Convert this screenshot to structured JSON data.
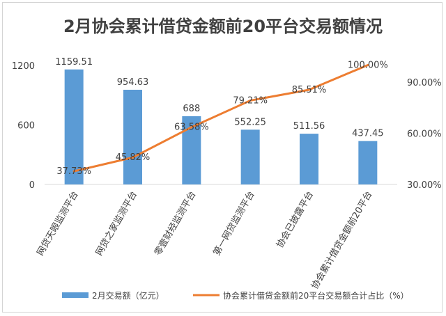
{
  "chart_data": {
    "type": "bar",
    "title": "2月协会累计借贷金额前20平台交易额情况",
    "categories": [
      "网贷天眼监测平台",
      "网贷之家监测平台",
      "零壹财经监测平台",
      "第一网贷监测平台",
      "协会已披露平台",
      "协会累计借贷金额前20平台"
    ],
    "series": [
      {
        "name": "2月交易额（亿元）",
        "type": "bar",
        "axis": "left",
        "color": "#5b9bd5",
        "values": [
          1159.51,
          954.63,
          688,
          552.25,
          511.56,
          437.45
        ],
        "labels": [
          "1159.51",
          "954.63",
          "688",
          "552.25",
          "511.56",
          "437.45"
        ]
      },
      {
        "name": "协会累计借贷金额前20平台交易额合计占比（%）",
        "type": "line",
        "axis": "right",
        "color": "#ed7d31",
        "values": [
          37.73,
          45.82,
          63.58,
          79.21,
          85.51,
          100.0
        ],
        "labels": [
          "37.73%",
          "45.82%",
          "63.58%",
          "79.21%",
          "85.51%",
          "100.00%"
        ]
      }
    ],
    "y_left": {
      "ticks": [
        0,
        600,
        1200
      ],
      "tick_labels": [
        "0",
        "600",
        "1200"
      ],
      "range": [
        0,
        1200
      ]
    },
    "y_right": {
      "ticks": [
        30,
        60,
        90
      ],
      "tick_labels": [
        "30.00%",
        "60.00%",
        "90.00%"
      ],
      "range": [
        30,
        90
      ]
    },
    "grid": false,
    "legend_position": "bottom"
  }
}
